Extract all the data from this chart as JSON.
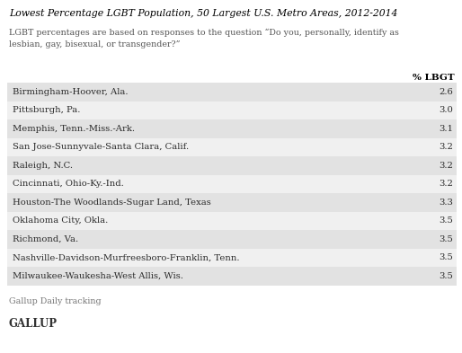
{
  "title": "Lowest Percentage LGBT Population, 50 Largest U.S. Metro Areas, 2012-2014",
  "subtitle": "LGBT percentages are based on responses to the question “Do you, personally, identify as\nlesbian, gay, bisexual, or transgender?”",
  "col_header": "% LBGT",
  "rows": [
    {
      "city": "Birmingham-Hoover, Ala.",
      "value": "2.6"
    },
    {
      "city": "Pittsburgh, Pa.",
      "value": "3.0"
    },
    {
      "city": "Memphis, Tenn.-Miss.-Ark.",
      "value": "3.1"
    },
    {
      "city": "San Jose-Sunnyvale-Santa Clara, Calif.",
      "value": "3.2"
    },
    {
      "city": "Raleigh, N.C.",
      "value": "3.2"
    },
    {
      "city": "Cincinnati, Ohio-Ky.-Ind.",
      "value": "3.2"
    },
    {
      "city": "Houston-The Woodlands-Sugar Land, Texas",
      "value": "3.3"
    },
    {
      "city": "Oklahoma City, Okla.",
      "value": "3.5"
    },
    {
      "city": "Richmond, Va.",
      "value": "3.5"
    },
    {
      "city": "Nashville-Davidson-Murfreesboro-Franklin, Tenn.",
      "value": "3.5"
    },
    {
      "city": "Milwaukee-Waukesha-West Allis, Wis.",
      "value": "3.5"
    }
  ],
  "footer": "Gallup Daily tracking",
  "logo": "GALLUP",
  "row_colors": [
    "#e2e2e2",
    "#f0f0f0"
  ],
  "background_color": "#ffffff",
  "title_color": "#000000",
  "subtitle_color": "#555555",
  "text_color": "#2a2a2a",
  "footer_color": "#777777",
  "logo_color": "#333333",
  "title_fontsize": 7.8,
  "subtitle_fontsize": 6.8,
  "header_fontsize": 7.5,
  "row_fontsize": 7.2,
  "footer_fontsize": 6.8,
  "logo_fontsize": 8.5
}
